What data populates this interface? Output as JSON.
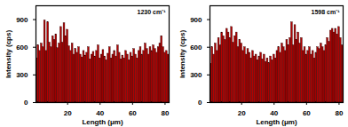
{
  "chart_data": [
    {
      "type": "bar",
      "title": "1230 cm⁻¹",
      "x_label": "Length (μm)",
      "y_label": "Intensity (cps)",
      "color": "#b30000",
      "x": [
        1,
        2,
        3,
        4,
        5,
        6,
        7,
        8,
        9,
        10,
        11,
        12,
        13,
        14,
        15,
        16,
        17,
        18,
        19,
        20,
        21,
        22,
        23,
        24,
        25,
        26,
        27,
        28,
        29,
        30,
        31,
        32,
        33,
        34,
        35,
        36,
        37,
        38,
        39,
        40,
        41,
        42,
        43,
        44,
        45,
        46,
        47,
        48,
        49,
        50,
        51,
        52,
        53,
        54,
        55,
        56,
        57,
        58,
        59,
        60,
        61,
        62,
        63,
        64,
        65,
        66,
        67,
        68,
        69,
        70,
        71,
        72,
        73,
        74,
        75,
        76,
        77,
        78,
        79,
        80,
        81,
        82
      ],
      "values": [
        480,
        620,
        560,
        640,
        600,
        890,
        560,
        870,
        650,
        600,
        720,
        680,
        740,
        590,
        640,
        820,
        650,
        860,
        720,
        790,
        610,
        560,
        640,
        520,
        580,
        540,
        600,
        520,
        490,
        560,
        510,
        540,
        600,
        470,
        520,
        550,
        500,
        560,
        620,
        480,
        520,
        570,
        500,
        460,
        530,
        600,
        480,
        520,
        560,
        500,
        620,
        540,
        470,
        510,
        480,
        560,
        520,
        460,
        540,
        500,
        580,
        520,
        480,
        560,
        600,
        520,
        560,
        640,
        580,
        520,
        600,
        560,
        620,
        580,
        540,
        600,
        640,
        720,
        600,
        540,
        560,
        520
      ],
      "xlim": [
        0.5,
        82.5
      ],
      "ylim": [
        0,
        1050
      ],
      "xticks": [
        20,
        40,
        60,
        80
      ],
      "yticks": [
        0,
        300,
        600,
        900
      ]
    },
    {
      "type": "bar",
      "title": "1598 cm⁻¹",
      "x_label": "Length (μm)",
      "y_label": "Intensity (cps)",
      "color": "#b30000",
      "x": [
        1,
        2,
        3,
        4,
        5,
        6,
        7,
        8,
        9,
        10,
        11,
        12,
        13,
        14,
        15,
        16,
        17,
        18,
        19,
        20,
        21,
        22,
        23,
        24,
        25,
        26,
        27,
        28,
        29,
        30,
        31,
        32,
        33,
        34,
        35,
        36,
        37,
        38,
        39,
        40,
        41,
        42,
        43,
        44,
        45,
        46,
        47,
        48,
        49,
        50,
        51,
        52,
        53,
        54,
        55,
        56,
        57,
        58,
        59,
        60,
        61,
        62,
        63,
        64,
        65,
        66,
        67,
        68,
        69,
        70,
        71,
        72,
        73,
        74,
        75,
        76,
        77,
        78,
        79,
        80,
        81,
        82
      ],
      "values": [
        420,
        600,
        520,
        640,
        560,
        700,
        620,
        760,
        720,
        680,
        800,
        760,
        700,
        820,
        650,
        720,
        760,
        600,
        680,
        640,
        560,
        600,
        520,
        580,
        540,
        480,
        560,
        500,
        520,
        460,
        500,
        540,
        470,
        520,
        440,
        480,
        430,
        500,
        460,
        520,
        480,
        560,
        600,
        540,
        640,
        600,
        560,
        680,
        620,
        700,
        870,
        620,
        840,
        680,
        760,
        640,
        700,
        560,
        600,
        520,
        560,
        600,
        520,
        560,
        480,
        540,
        600,
        580,
        640,
        600,
        560,
        620,
        700,
        660,
        780,
        800,
        760,
        800,
        740,
        820,
        700,
        620
      ],
      "xlim": [
        0.5,
        82.5
      ],
      "ylim": [
        0,
        1050
      ],
      "xticks": [
        20,
        40,
        60,
        80
      ],
      "yticks": [
        0,
        300,
        600,
        900
      ]
    }
  ]
}
